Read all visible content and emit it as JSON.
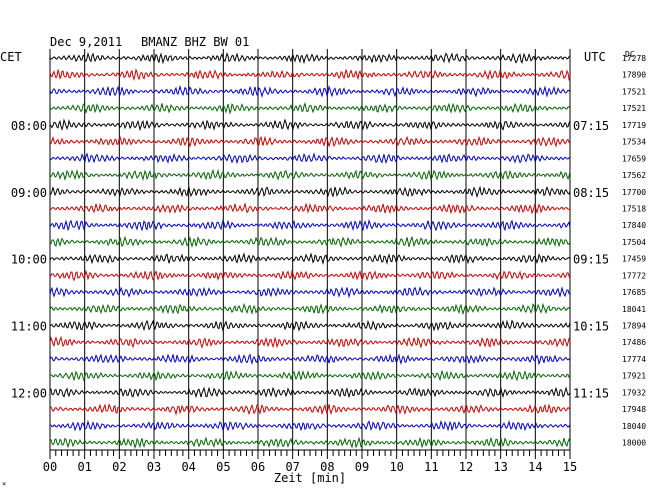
{
  "header": {
    "date": "Dec 9,2011",
    "station": "BMANZ BHZ BW 01",
    "left_tz": "CET",
    "right_tz": "UTC",
    "dc_label": "DC"
  },
  "xaxis": {
    "label": "Zeit [min]",
    "ticks": [
      "00",
      "01",
      "02",
      "03",
      "04",
      "05",
      "06",
      "07",
      "08",
      "09",
      "10",
      "11",
      "12",
      "13",
      "14",
      "15"
    ],
    "range": [
      0,
      15
    ]
  },
  "colors": {
    "trace_cycle": [
      "#000000",
      "#cc0000",
      "#0000cc",
      "#006600"
    ]
  },
  "chart_data": {
    "type": "line",
    "title": "Dec 9,2011   BMANZ BHZ BW 01",
    "xlabel": "Zeit [min]",
    "ylabel": "",
    "xlim": [
      0,
      15
    ],
    "grid": true,
    "trace_minutes": 15,
    "left_hour_labels": [
      "08:00",
      "09:00",
      "10:00",
      "11:00",
      "12:00"
    ],
    "right_hour_labels": [
      "07:15",
      "08:15",
      "09:15",
      "10:15",
      "11:15"
    ],
    "dc_offsets": [
      17278,
      17890,
      17521,
      17521,
      17719,
      17534,
      17659,
      17562,
      17700,
      17518,
      17840,
      17504,
      17459,
      17772,
      17685,
      18041,
      17894,
      17486,
      17774,
      17921,
      17932,
      17948,
      18040,
      18000
    ]
  }
}
